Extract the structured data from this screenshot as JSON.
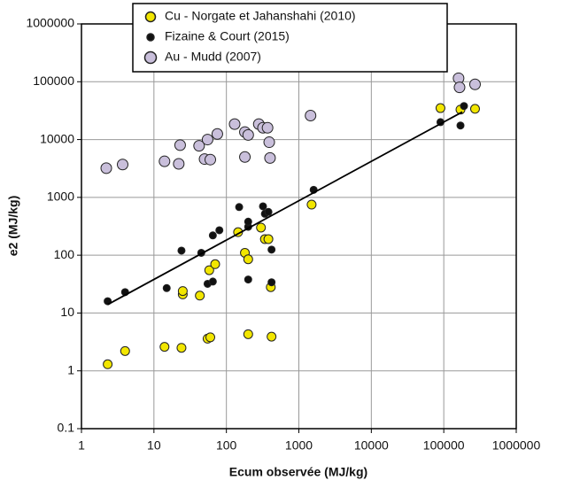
{
  "chart_data": {
    "type": "scatter",
    "x_label": "Ecum observée (MJ/kg)",
    "y_label": "e2 (MJ/kg)",
    "xscale": "log",
    "yscale": "log",
    "xlim": [
      1,
      1000000
    ],
    "ylim": [
      0.1,
      1000000
    ],
    "xticks": [
      1,
      10,
      100,
      1000,
      10000,
      100000,
      1000000
    ],
    "yticks": [
      0.1,
      1,
      10,
      100,
      1000,
      10000,
      100000,
      1000000
    ],
    "grid": true,
    "legend": "upper center",
    "series": [
      {
        "name": "Cu - Norgate et Jahanshahi (2010)",
        "color": "#f2e600",
        "x": [
          2.3,
          4,
          14,
          24,
          25,
          25,
          43,
          55,
          60,
          58,
          70,
          145,
          180,
          200,
          200,
          300,
          340,
          380,
          410,
          420,
          1500,
          90000,
          170000,
          270000
        ],
        "values": [
          1.3,
          2.2,
          2.6,
          2.5,
          21,
          24,
          20,
          3.6,
          3.8,
          55,
          70,
          250,
          110,
          85,
          4.3,
          300,
          190,
          190,
          28,
          3.9,
          750,
          35000,
          33000,
          34000
        ]
      },
      {
        "name": "Fizaine & Court (2015)",
        "color": "#111111",
        "x": [
          2.3,
          4,
          15,
          24,
          45,
          55,
          65,
          65,
          80,
          150,
          200,
          200,
          200,
          320,
          340,
          380,
          420,
          420,
          1600,
          90000,
          170000,
          190000
        ],
        "values": [
          16,
          23,
          27,
          120,
          110,
          32,
          35,
          220,
          270,
          680,
          38,
          310,
          380,
          700,
          520,
          560,
          125,
          34,
          1350,
          20000,
          17500,
          38000
        ]
      },
      {
        "name": "Au - Mudd (2007)",
        "color": "#c9bfdb",
        "x": [
          2.2,
          3.7,
          14,
          22,
          23,
          42,
          50,
          55,
          60,
          75,
          130,
          180,
          200,
          280,
          320,
          370,
          390,
          400,
          1450,
          160000,
          165000,
          270000,
          180
        ],
        "values": [
          3200,
          3700,
          4200,
          3800,
          8000,
          7800,
          4600,
          10000,
          4500,
          12500,
          18500,
          13500,
          12000,
          18500,
          16000,
          16000,
          9000,
          4800,
          26000,
          115000,
          80000,
          90000,
          5000
        ]
      }
    ],
    "trend_line": {
      "color": "#000000",
      "x": [
        2.3,
        180000
      ],
      "values": [
        14,
        30000
      ]
    }
  }
}
